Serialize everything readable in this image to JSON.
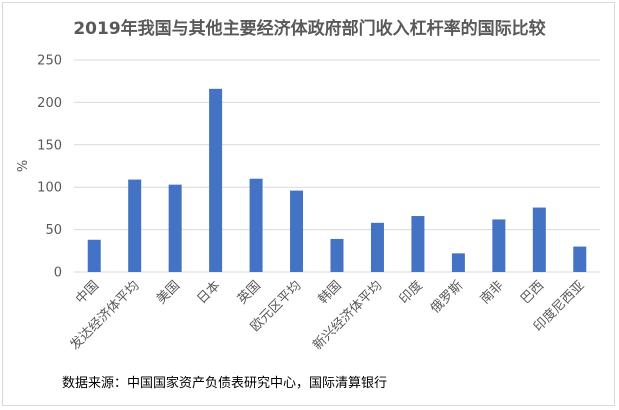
{
  "chart_data": {
    "type": "bar",
    "title": "2019年我国与其他主要经济体政府部门收入杠杆率的国际比较",
    "xlabel": "",
    "ylabel": "%",
    "ylim": [
      0,
      250
    ],
    "yticks": [
      0,
      50,
      100,
      150,
      200,
      250
    ],
    "grid": true,
    "legend": "none",
    "bar_color": "#4472c4",
    "grid_color": "#d9d9d9",
    "categories": [
      "中国",
      "发达经济体平均",
      "美国",
      "日本",
      "英国",
      "欧元区平均",
      "韩国",
      "新兴经济体平均",
      "印度",
      "俄罗斯",
      "南非",
      "巴西",
      "印度尼西亚"
    ],
    "values": [
      38,
      109,
      103,
      216,
      110,
      96,
      39,
      58,
      66,
      22,
      62,
      76,
      30
    ]
  },
  "source_note": "数据来源：中国国家资产负债表研究中心，国际清算银行"
}
